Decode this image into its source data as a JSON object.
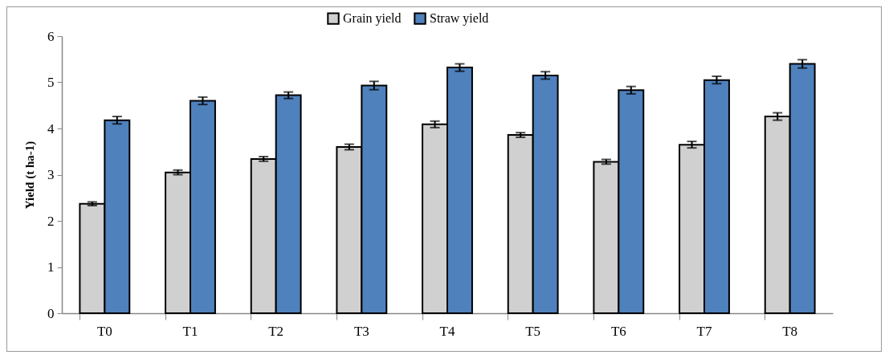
{
  "chart_data": {
    "type": "bar",
    "ylabel": "Yield (t ha-1)",
    "categories": [
      "T0",
      "T1",
      "T2",
      "T3",
      "T4",
      "T5",
      "T6",
      "T7",
      "T8"
    ],
    "series": [
      {
        "name": "Grain yield",
        "color": "#d0d0d0",
        "values": [
          2.37,
          3.05,
          3.34,
          3.6,
          4.09,
          3.86,
          3.28,
          3.65,
          4.26
        ],
        "errors": [
          0.04,
          0.05,
          0.05,
          0.06,
          0.07,
          0.05,
          0.05,
          0.07,
          0.08
        ]
      },
      {
        "name": "Straw yield",
        "color": "#4f81bd",
        "values": [
          4.18,
          4.6,
          4.72,
          4.93,
          5.32,
          5.15,
          4.83,
          5.05,
          5.4
        ],
        "errors": [
          0.08,
          0.08,
          0.07,
          0.09,
          0.08,
          0.08,
          0.08,
          0.08,
          0.09
        ]
      }
    ],
    "ylim": [
      0,
      6
    ],
    "yticks": [
      0,
      1,
      2,
      3,
      4,
      5,
      6
    ],
    "grid": false,
    "legend": "top"
  }
}
